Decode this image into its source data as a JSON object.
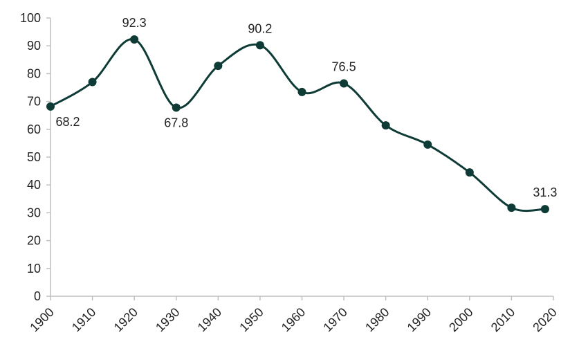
{
  "chart_data": {
    "type": "line",
    "x": [
      1900,
      1910,
      1920,
      1930,
      1940,
      1950,
      1960,
      1970,
      1980,
      1990,
      2000,
      2010,
      2018
    ],
    "values": [
      68.2,
      77,
      92.3,
      67.8,
      82.8,
      90.2,
      73.4,
      76.5,
      61.4,
      54.5,
      44.5,
      31.8,
      31.3
    ],
    "value_labels": [
      "68.2",
      null,
      "92.3",
      "67.8",
      null,
      "90.2",
      null,
      "76.5",
      null,
      null,
      null,
      null,
      "31.3"
    ],
    "color": "#0e3b35",
    "xlim": [
      1900,
      2020
    ],
    "xticks": [
      1900,
      1910,
      1920,
      1930,
      1940,
      1950,
      1960,
      1970,
      1980,
      1990,
      2000,
      2010,
      2020
    ],
    "ylim": [
      0,
      100
    ],
    "yticks": [
      0,
      10,
      20,
      30,
      40,
      50,
      60,
      70,
      80,
      90,
      100
    ],
    "grid": false,
    "smooth": true
  }
}
